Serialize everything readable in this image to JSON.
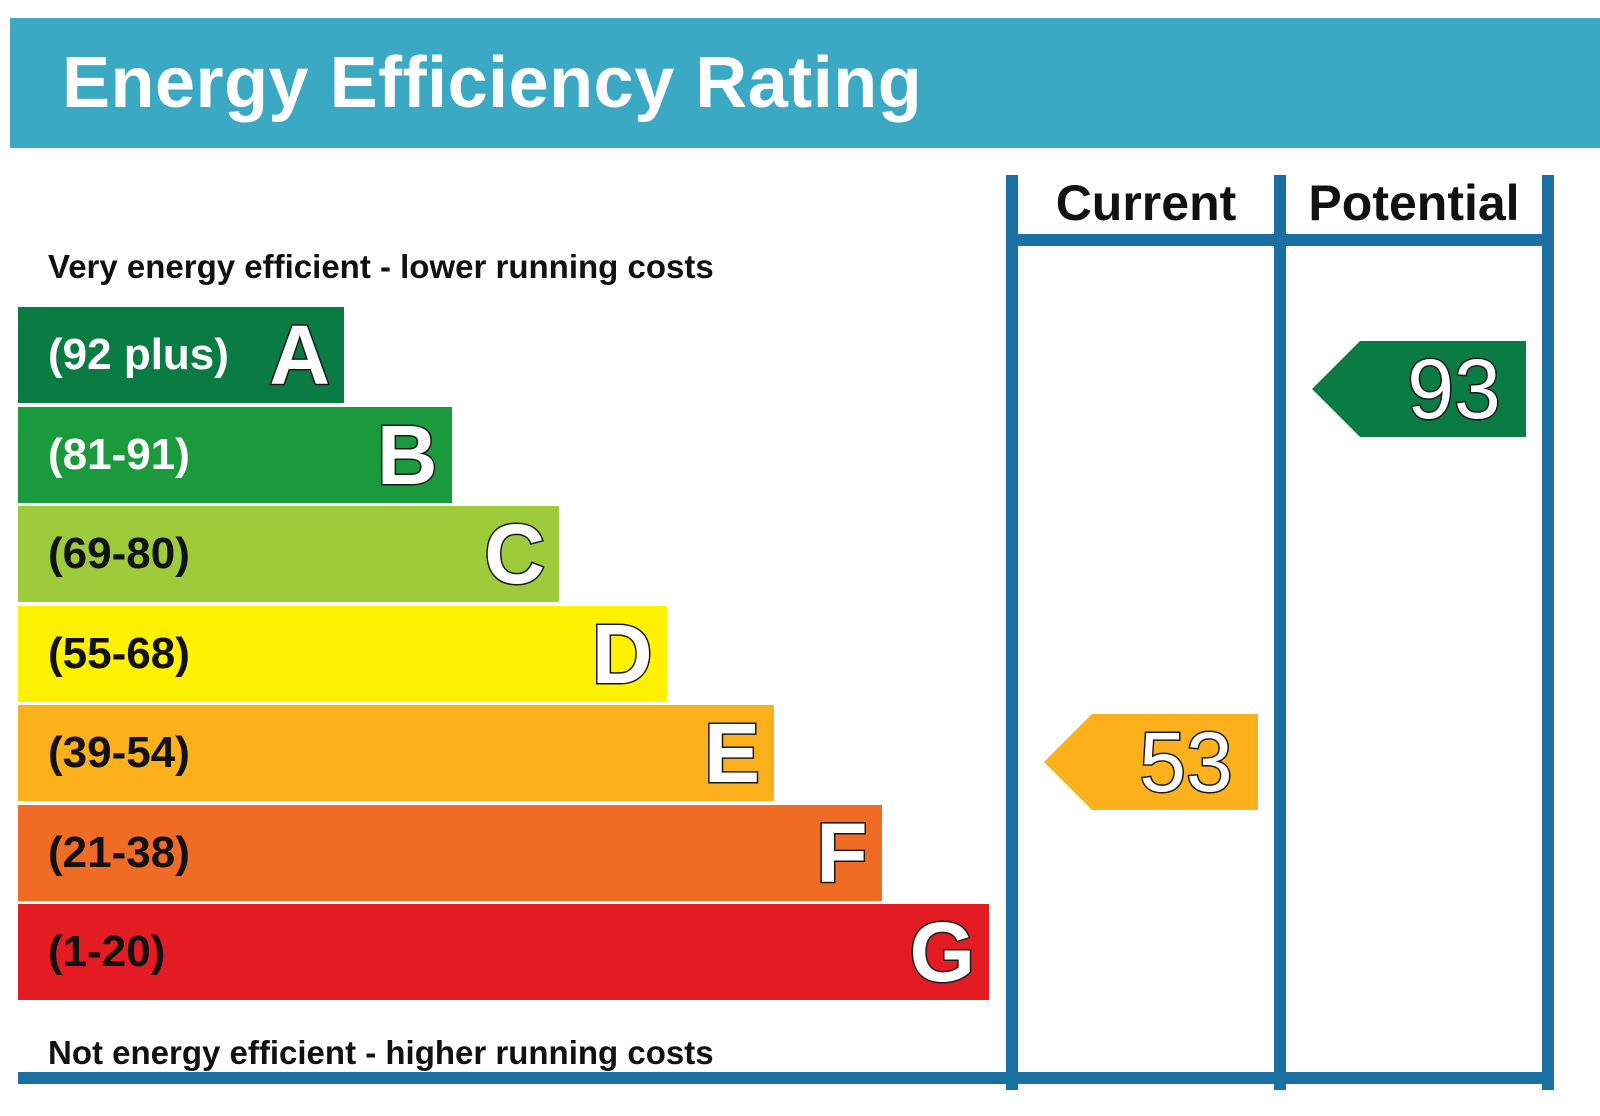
{
  "title": "Energy Efficiency Rating",
  "top_caption": "Very energy efficient - lower running costs",
  "bottom_caption": "Not energy efficient - higher running costs",
  "columns": {
    "current": "Current",
    "potential": "Potential"
  },
  "colors": {
    "header": "#3ba9c4",
    "frame": "#1a6fa3",
    "band_A": "#0a7c43",
    "band_B": "#1b9a3d",
    "band_C": "#9dcb3c",
    "band_D": "#fff200",
    "band_E": "#fbb01c",
    "band_F": "#f06b23",
    "band_G": "#e31c24"
  },
  "chart_data": {
    "type": "bar",
    "bands": [
      {
        "letter": "A",
        "range": "(92 plus)",
        "min": 92,
        "max": null,
        "color": "#0a7c43",
        "text_color": "#ffffff"
      },
      {
        "letter": "B",
        "range": "(81-91)",
        "min": 81,
        "max": 91,
        "color": "#1b9a3d",
        "text_color": "#ffffff"
      },
      {
        "letter": "C",
        "range": "(69-80)",
        "min": 69,
        "max": 80,
        "color": "#9dcb3c",
        "text_color": "#111111"
      },
      {
        "letter": "D",
        "range": "(55-68)",
        "min": 55,
        "max": 68,
        "color": "#fff200",
        "text_color": "#111111"
      },
      {
        "letter": "E",
        "range": "(39-54)",
        "min": 39,
        "max": 54,
        "color": "#fbb01c",
        "text_color": "#111111"
      },
      {
        "letter": "F",
        "range": "(21-38)",
        "min": 21,
        "max": 38,
        "color": "#f06b23",
        "text_color": "#111111"
      },
      {
        "letter": "G",
        "range": "(1-20)",
        "min": 1,
        "max": 20,
        "color": "#e31c24",
        "text_color": "#111111"
      }
    ],
    "ratings": [
      {
        "column": "Current",
        "value": 53,
        "band": "E",
        "color": "#fbb01c"
      },
      {
        "column": "Potential",
        "value": 93,
        "band": "A",
        "color": "#0a7c43"
      }
    ]
  }
}
